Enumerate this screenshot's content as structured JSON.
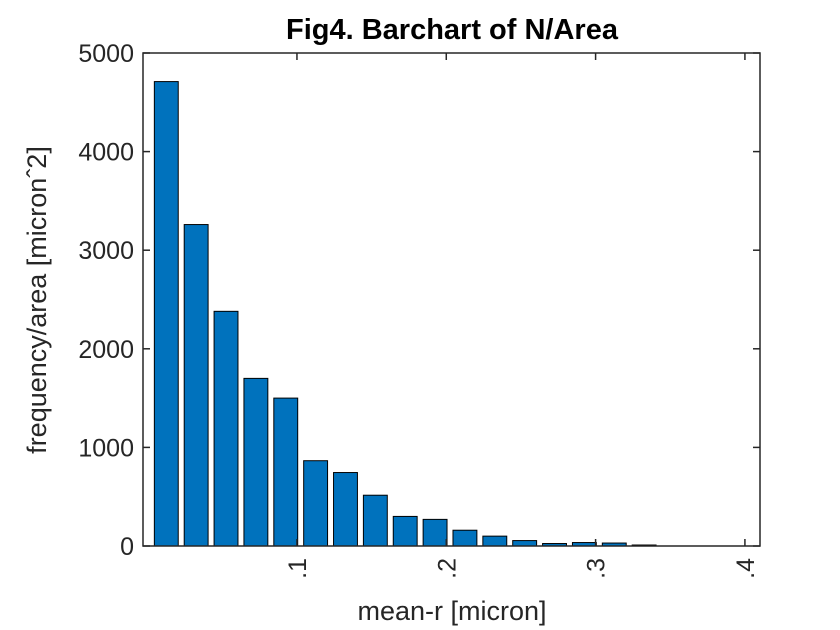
{
  "chart_data": {
    "type": "bar",
    "title": "Fig4. Barchart of N/Area",
    "xlabel": "mean-r [micron]",
    "ylabel": "frequency/area [micronˆ2]",
    "x": [
      0.0125,
      0.0325,
      0.0525,
      0.0725,
      0.0925,
      0.1125,
      0.1325,
      0.1525,
      0.1725,
      0.1925,
      0.2125,
      0.2325,
      0.2525,
      0.2725,
      0.2925,
      0.3125,
      0.3325
    ],
    "values": [
      4710,
      3260,
      2380,
      1700,
      1500,
      865,
      745,
      515,
      300,
      270,
      160,
      100,
      55,
      25,
      35,
      30,
      10
    ],
    "xlim": [
      -0.0031,
      0.4101
    ],
    "ylim": [
      0,
      5000
    ],
    "xticks": [
      0.1,
      0.2,
      0.3,
      0.4
    ],
    "xtick_labels": [
      ".1",
      ".2",
      ".3",
      ".4"
    ],
    "yticks": [
      0,
      1000,
      2000,
      3000,
      4000,
      5000
    ],
    "ytick_labels": [
      "0",
      "1000",
      "2000",
      "3000",
      "4000",
      "5000"
    ],
    "bar_width": 0.016,
    "bar_color": "#0072BD",
    "edge_color": "#000000",
    "grid": false,
    "legend": "none"
  }
}
